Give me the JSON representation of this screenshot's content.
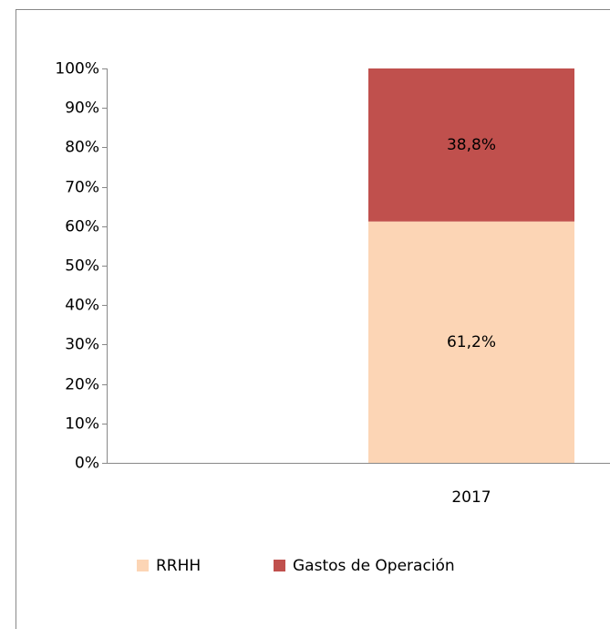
{
  "chart_data": {
    "type": "stacked_bar",
    "categories": [
      "2017"
    ],
    "series": [
      {
        "name": "RRHH",
        "color": "#fcd5b5",
        "values": [
          61.2
        ],
        "value_labels": [
          "61,2%"
        ]
      },
      {
        "name": "Gastos de Operación",
        "color": "#c0504d",
        "values": [
          38.8
        ],
        "value_labels": [
          "38,8%"
        ]
      }
    ],
    "ylim": [
      0,
      100
    ],
    "yticks": [
      {
        "value": 0,
        "label": "0%"
      },
      {
        "value": 10,
        "label": "10%"
      },
      {
        "value": 20,
        "label": "20%"
      },
      {
        "value": 30,
        "label": "30%"
      },
      {
        "value": 40,
        "label": "40%"
      },
      {
        "value": 50,
        "label": "50%"
      },
      {
        "value": 60,
        "label": "60%"
      },
      {
        "value": 70,
        "label": "70%"
      },
      {
        "value": 80,
        "label": "80%"
      },
      {
        "value": 90,
        "label": "90%"
      },
      {
        "value": 100,
        "label": "100%"
      }
    ],
    "legend": "bottom"
  }
}
